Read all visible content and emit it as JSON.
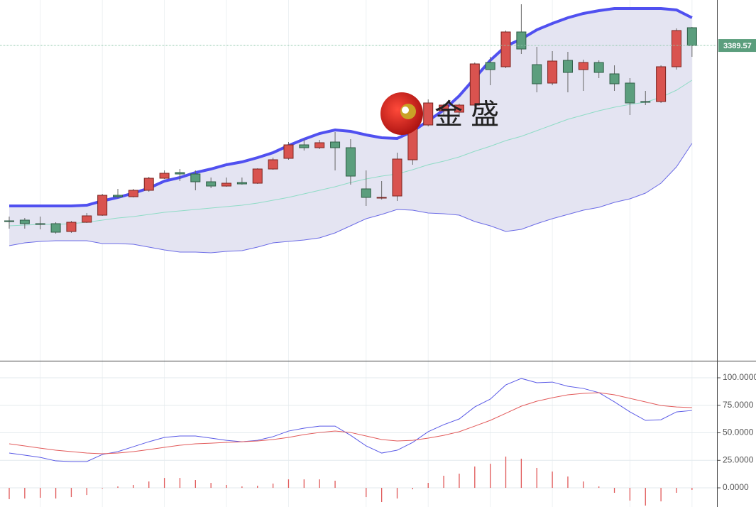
{
  "chart_data": [
    {
      "type": "candlestick",
      "open": [
        3266.1,
        3266.6,
        3264.1,
        3264.1,
        3258.6,
        3265.1,
        3270.1,
        3284.1,
        3283.1,
        3287.6,
        3296.1,
        3300.1,
        3299.1,
        3293.6,
        3290.6,
        3293.1,
        3292.6,
        3302.6,
        3310.1,
        3319.6,
        3317.6,
        3321.6,
        3317.6,
        3288.6,
        3282.1,
        3283.6,
        3309.1,
        3333.6,
        3343.6,
        3342.6,
        3347.6,
        3377.6,
        3374.6,
        3399.1,
        3376.1,
        3363.1,
        3379.1,
        3372.6,
        3377.6,
        3369.6,
        3363.1,
        3350.1,
        3350.1,
        3374.6,
        3402.1
      ],
      "high": [
        3269.1,
        3268.1,
        3269.1,
        3265.1,
        3266.1,
        3271.6,
        3285.1,
        3288.6,
        3288.6,
        3297.1,
        3301.6,
        3302.6,
        3301.6,
        3296.6,
        3296.6,
        3296.6,
        3303.1,
        3310.6,
        3321.6,
        3323.6,
        3323.1,
        3328.6,
        3323.6,
        3301.6,
        3294.1,
        3314.1,
        3336.6,
        3351.6,
        3348.6,
        3348.6,
        3377.6,
        3381.6,
        3400.1,
        3418.6,
        3388.6,
        3385.6,
        3385.1,
        3379.6,
        3379.1,
        3375.6,
        3366.6,
        3357.6,
        3375.6,
        3401.6,
        3402.6
      ],
      "low": [
        3260.6,
        3260.6,
        3260.1,
        3257.1,
        3257.6,
        3264.6,
        3269.6,
        3282.1,
        3282.6,
        3286.6,
        3295.6,
        3294.1,
        3287.6,
        3289.1,
        3290.1,
        3291.6,
        3292.1,
        3302.1,
        3309.1,
        3315.6,
        3316.6,
        3301.6,
        3291.6,
        3276.6,
        3281.1,
        3280.1,
        3305.6,
        3332.6,
        3340.6,
        3339.1,
        3346.6,
        3361.6,
        3373.6,
        3383.6,
        3356.6,
        3361.6,
        3356.6,
        3357.6,
        3366.6,
        3357.6,
        3340.6,
        3347.6,
        3349.1,
        3372.6,
        3381.6
      ],
      "close": [
        3265.6,
        3264.1,
        3263.6,
        3258.1,
        3265.1,
        3269.6,
        3284.1,
        3283.1,
        3287.6,
        3296.1,
        3299.6,
        3299.1,
        3293.6,
        3290.6,
        3292.6,
        3292.1,
        3302.6,
        3309.1,
        3319.6,
        3317.6,
        3321.1,
        3317.6,
        3297.6,
        3282.6,
        3282.6,
        3309.6,
        3331.6,
        3349.1,
        3347.6,
        3347.6,
        3376.6,
        3372.6,
        3399.1,
        3387.1,
        3362.6,
        3378.6,
        3370.6,
        3377.6,
        3370.6,
        3362.6,
        3349.1,
        3349.6,
        3374.6,
        3400.1,
        3389.57
      ],
      "up_color": "#d9534f",
      "down_color": "#5b9e7d",
      "series": [
        {
          "color": "#5050f0",
          "values": [
            3276.6,
            3276.6,
            3276.6,
            3276.6,
            3276.6,
            3277.1,
            3280.1,
            3282.6,
            3285.6,
            3289.1,
            3294.1,
            3296.6,
            3300.1,
            3302.6,
            3305.6,
            3307.6,
            3310.6,
            3314.1,
            3319.1,
            3323.6,
            3327.6,
            3330.1,
            3329.1,
            3326.6,
            3324.6,
            3324.1,
            3329.1,
            3336.6,
            3344.1,
            3354.1,
            3366.6,
            3379.1,
            3389.1,
            3394.1,
            3400.6,
            3405.1,
            3409.1,
            3412.1,
            3414.1,
            3415.6,
            3415.6,
            3415.6,
            3415.6,
            3414.6,
            3409.1
          ]
        },
        {
          "color": "#8fdcc6",
          "values": [
            3262.6,
            3263.1,
            3263.6,
            3263.6,
            3264.1,
            3265.1,
            3266.6,
            3268.1,
            3269.1,
            3270.6,
            3272.1,
            3273.1,
            3274.1,
            3275.1,
            3276.1,
            3277.1,
            3278.6,
            3280.6,
            3282.6,
            3285.1,
            3287.6,
            3290.1,
            3293.1,
            3295.6,
            3297.6,
            3299.1,
            3302.1,
            3305.6,
            3308.1,
            3311.1,
            3315.1,
            3318.6,
            3322.6,
            3325.6,
            3329.6,
            3333.6,
            3337.6,
            3340.6,
            3343.6,
            3346.1,
            3348.1,
            3349.6,
            3353.1,
            3358.1,
            3365.1
          ]
        },
        {
          "color": "#6b6be6",
          "values": [
            3248.6,
            3250.6,
            3251.6,
            3252.1,
            3252.1,
            3252.1,
            3250.1,
            3250.1,
            3249.6,
            3247.6,
            3245.6,
            3244.1,
            3244.1,
            3243.6,
            3244.6,
            3245.1,
            3247.6,
            3250.6,
            3251.6,
            3252.6,
            3254.1,
            3257.6,
            3262.6,
            3267.6,
            3270.6,
            3274.1,
            3273.6,
            3271.6,
            3271.1,
            3270.1,
            3265.6,
            3262.6,
            3258.6,
            3260.1,
            3264.1,
            3267.6,
            3270.6,
            3273.6,
            3275.6,
            3279.1,
            3281.6,
            3285.6,
            3292.6,
            3304.1,
            3320.6
          ]
        }
      ],
      "band_fill": "#e4e4f2",
      "price_line": 3389.57,
      "price_color": "#5b9e7d",
      "watermark": "金 盛",
      "ylim": [
        3167.6,
        3421.6
      ],
      "grid": true
    },
    {
      "type": "line",
      "series": [
        {
          "color": "#5a5ae6",
          "values": [
            31.6,
            29.7,
            27.7,
            24.5,
            23.9,
            23.9,
            30.3,
            32.9,
            37.4,
            41.9,
            45.8,
            47.1,
            47.1,
            45.2,
            43.2,
            41.9,
            43.2,
            46.5,
            51.6,
            54.2,
            56.1,
            56.1,
            47.7,
            38.1,
            31.6,
            34.2,
            41.3,
            51.0,
            57.4,
            62.6,
            73.5,
            80.6,
            93.5,
            99.4,
            95.5,
            96.1,
            92.3,
            90.3,
            86.5,
            78.1,
            69.0,
            61.3,
            61.9,
            69.0,
            70.3
          ]
        },
        {
          "color": "#e25a5a",
          "values": [
            40.0,
            38.1,
            36.1,
            34.2,
            32.9,
            31.6,
            31.0,
            31.6,
            32.9,
            34.8,
            36.8,
            38.7,
            40.0,
            40.6,
            41.3,
            41.9,
            42.6,
            43.9,
            45.8,
            48.4,
            50.3,
            51.6,
            50.3,
            47.1,
            43.9,
            42.6,
            43.2,
            45.2,
            47.7,
            51.0,
            56.1,
            61.3,
            67.7,
            74.2,
            78.7,
            81.9,
            84.5,
            85.8,
            86.5,
            84.5,
            81.3,
            78.1,
            74.8,
            73.5,
            72.9
          ]
        }
      ],
      "bars": {
        "color": "#e05858",
        "values": [
          -10.3,
          -9.7,
          -9.0,
          -9.7,
          -8.4,
          -6.5,
          -0.6,
          1.3,
          2.6,
          5.8,
          9.0,
          9.0,
          7.1,
          4.5,
          2.6,
          1.3,
          1.9,
          3.9,
          7.7,
          7.7,
          7.7,
          6.5,
          0,
          -8.4,
          -12.9,
          -9.7,
          -1.3,
          4.5,
          11.0,
          12.9,
          19.4,
          21.9,
          28.4,
          26.5,
          18.1,
          14.8,
          10.3,
          5.8,
          1.3,
          -4.5,
          -11.6,
          -16.1,
          -12.3,
          -4.5,
          -1.9
        ]
      },
      "ylim": [
        -17.4,
        115.5
      ],
      "yticks": [
        {
          "value": 100,
          "label": "100.0000"
        },
        {
          "value": 75,
          "label": "75.0000"
        },
        {
          "value": 50,
          "label": "50.0000"
        },
        {
          "value": 25,
          "label": "25.0000"
        },
        {
          "value": 0,
          "label": "0.0000"
        }
      ],
      "grid": true
    }
  ]
}
